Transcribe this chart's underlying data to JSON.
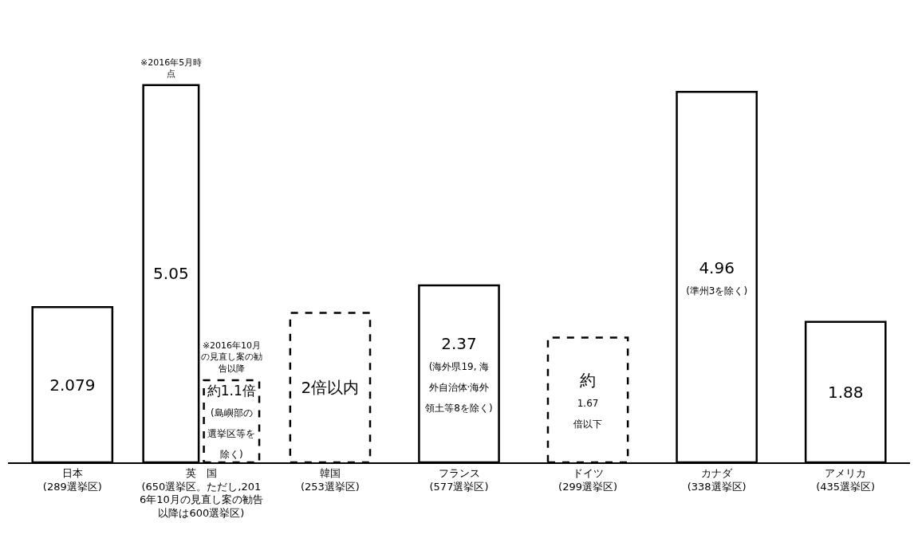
{
  "chart_data": {
    "type": "bar",
    "categories": [
      "日本\n(289選挙区)",
      "英　国\n(650選挙区。ただし,2016年10月の見直し案の勧告以降は600選挙区)",
      "韓国\n(253選挙区)",
      "フランス\n(577選挙区)",
      "ドイツ\n(299選挙区)",
      "カナダ\n(338選挙区)",
      "アメリカ\n(435選挙区)"
    ],
    "series": [
      {
        "color": "#ffffff",
        "line_style": "solid",
        "values": [
          2.079,
          5.05,
          null,
          2.37,
          null,
          4.96,
          1.88
        ],
        "value_labels": [
          "2.079",
          "5.05",
          null,
          "2.37\n(海外県19, 海外自治体·海外領土等8を除く)",
          null,
          "4.96\n(準州3を除く)",
          "1.88"
        ]
      },
      {
        "color": "#ffffff",
        "line_style": "dashed",
        "values": [
          null,
          1.1,
          2,
          null,
          1.67,
          null,
          null
        ],
        "value_labels": [
          null,
          "約1.1倍\n(島嶼部の選挙区等を除く)",
          "2倍以内",
          null,
          "約\n1.67\n倍以下",
          null,
          null
        ]
      }
    ],
    "annotations": [
      {
        "text": "※2016年5月時点",
        "x": "英　国\n(650選挙区。ただし,2016年10月の見直し案の勧告以降は600選挙区)",
        "y": 5.05
      },
      {
        "text": "※2016年10月の見直し案の勧告以降",
        "x": "英　国\n(650選挙区。ただし,2016年10月の見直し案の勧告以降は600選挙区)",
        "y": 1.1
      }
    ]
  }
}
